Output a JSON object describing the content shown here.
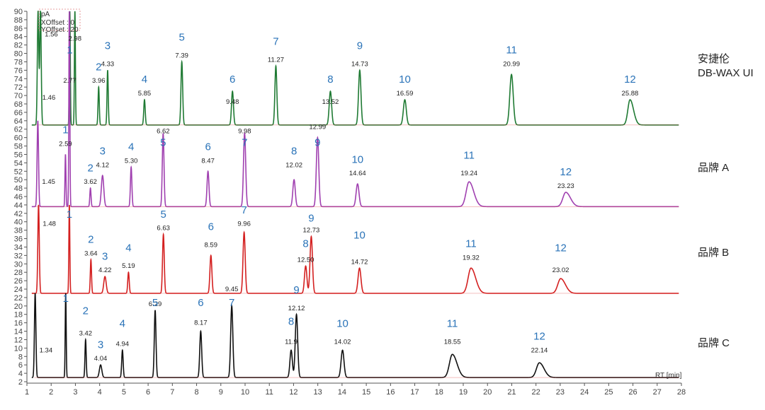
{
  "chart_data": {
    "type": "line",
    "y_unit": "pA",
    "x_offset_text": "XOffset : 0",
    "y_offset_text": "YOffset : 20",
    "xlabel": "RT [min]",
    "xlim": [
      1,
      28
    ],
    "ylim": [
      2,
      90
    ],
    "x_ticks": [
      1,
      2,
      3,
      4,
      5,
      6,
      7,
      8,
      9,
      10,
      11,
      12,
      13,
      14,
      15,
      16,
      17,
      18,
      19,
      20,
      21,
      22,
      23,
      24,
      25,
      26,
      27,
      28
    ],
    "y_ticks": [
      2,
      4,
      6,
      8,
      10,
      12,
      14,
      16,
      18,
      20,
      22,
      24,
      26,
      28,
      30,
      32,
      34,
      36,
      38,
      40,
      42,
      44,
      46,
      48,
      50,
      52,
      54,
      56,
      58,
      60,
      62,
      64,
      66,
      68,
      70,
      72,
      74,
      76,
      78,
      80,
      82,
      84,
      86,
      88,
      90
    ],
    "series": [
      {
        "name": "安捷伦 DB-WAX UI",
        "label_line1": "安捷伦",
        "label_line2": "DB-WAX UI",
        "color": "#1f7a33",
        "baseline": 63,
        "solvent": [
          {
            "rt": 1.46,
            "label": "1.46",
            "label_y": 69
          },
          {
            "rt": 1.56,
            "label": "1.56",
            "label_y": 84
          }
        ],
        "solvent_apex": 90,
        "peaks": [
          {
            "rt": 2.77,
            "num": "1",
            "apex": 90,
            "width": 0.02,
            "label": "2.77",
            "label_y": 73,
            "num_y": 80
          },
          {
            "rt": 2.98,
            "num": "",
            "apex": 90,
            "width": 0.02,
            "label": "2.98",
            "label_y": 83,
            "num_y": 0
          },
          {
            "rt": 3.96,
            "num": "2",
            "apex": 72,
            "width": 0.025,
            "label": "3.96",
            "label_y": 73,
            "num_y": 76
          },
          {
            "rt": 4.33,
            "num": "3",
            "apex": 76,
            "width": 0.025,
            "label": "4.33",
            "label_y": 77,
            "num_y": 81
          },
          {
            "rt": 5.85,
            "num": "4",
            "apex": 69,
            "width": 0.03,
            "label": "5.85",
            "label_y": 70,
            "num_y": 73
          },
          {
            "rt": 7.39,
            "num": "5",
            "apex": 78,
            "width": 0.035,
            "label": "7.39",
            "label_y": 79,
            "num_y": 83
          },
          {
            "rt": 9.48,
            "num": "6",
            "apex": 71,
            "width": 0.04,
            "label": "9.48",
            "label_y": 68,
            "num_y": 73
          },
          {
            "rt": 11.27,
            "num": "7",
            "apex": 77,
            "width": 0.04,
            "label": "11.27",
            "label_y": 78,
            "num_y": 82
          },
          {
            "rt": 13.52,
            "num": "8",
            "apex": 71,
            "width": 0.05,
            "label": "13.52",
            "label_y": 68,
            "num_y": 73
          },
          {
            "rt": 14.73,
            "num": "9",
            "apex": 76,
            "width": 0.05,
            "label": "14.73",
            "label_y": 77,
            "num_y": 81
          },
          {
            "rt": 16.59,
            "num": "10",
            "apex": 69,
            "width": 0.06,
            "label": "16.59",
            "label_y": 70,
            "num_y": 73
          },
          {
            "rt": 20.99,
            "num": "11",
            "apex": 75,
            "width": 0.07,
            "label": "20.99",
            "label_y": 77,
            "num_y": 80
          },
          {
            "rt": 25.88,
            "num": "12",
            "apex": 69,
            "width": 0.09,
            "label": "25.88",
            "label_y": 70,
            "num_y": 73
          }
        ]
      },
      {
        "name": "品牌 A",
        "label_line1": "品牌 A",
        "label_line2": "",
        "color": "#a040b0",
        "baseline": 43.6,
        "solvent": [
          {
            "rt": 1.45,
            "label": "1.45",
            "label_y": 49
          }
        ],
        "solvent_apex": 64,
        "peaks": [
          {
            "rt": 2.59,
            "num": "1",
            "apex": 56,
            "width": 0.02,
            "label": "2.59",
            "label_y": 58,
            "num_y": 61
          },
          {
            "rt": 2.75,
            "num": "",
            "apex": 90,
            "width": 0.02,
            "label": "",
            "label_y": 0,
            "num_y": 0
          },
          {
            "rt": 3.62,
            "num": "2",
            "apex": 48,
            "width": 0.025,
            "label": "3.62",
            "label_y": 49,
            "num_y": 52
          },
          {
            "rt": 4.12,
            "num": "3",
            "apex": 51,
            "width": 0.05,
            "label": "4.12",
            "label_y": 53,
            "num_y": 56
          },
          {
            "rt": 5.3,
            "num": "4",
            "apex": 53,
            "width": 0.03,
            "label": "5.30",
            "label_y": 54,
            "num_y": 57
          },
          {
            "rt": 6.62,
            "num": "5",
            "apex": 61,
            "width": 0.035,
            "label": "6.62",
            "label_y": 61,
            "num_y": 58
          },
          {
            "rt": 8.47,
            "num": "6",
            "apex": 52,
            "width": 0.04,
            "label": "8.47",
            "label_y": 54,
            "num_y": 57
          },
          {
            "rt": 9.98,
            "num": "7",
            "apex": 61,
            "width": 0.045,
            "label": "9.98",
            "label_y": 61,
            "num_y": 58
          },
          {
            "rt": 12.02,
            "num": "8",
            "apex": 50,
            "width": 0.05,
            "label": "12.02",
            "label_y": 53,
            "num_y": 56
          },
          {
            "rt": 12.99,
            "num": "9",
            "apex": 60,
            "width": 0.05,
            "label": "12.99",
            "label_y": 62,
            "num_y": 58
          },
          {
            "rt": 14.64,
            "num": "10",
            "apex": 49,
            "width": 0.06,
            "label": "14.64",
            "label_y": 51,
            "num_y": 54
          },
          {
            "rt": 19.24,
            "num": "11",
            "apex": 49.5,
            "width": 0.12,
            "label": "19.24",
            "label_y": 51,
            "num_y": 55
          },
          {
            "rt": 23.23,
            "num": "12",
            "apex": 47,
            "width": 0.12,
            "label": "23.23",
            "label_y": 48,
            "num_y": 51
          }
        ]
      },
      {
        "name": "品牌 B",
        "label_line1": "品牌 B",
        "label_line2": "",
        "color": "#d42020",
        "baseline": 23,
        "solvent": [
          {
            "rt": 1.48,
            "label": "1.48",
            "label_y": 39
          }
        ],
        "solvent_apex": 44,
        "peaks": [
          {
            "rt": 2.75,
            "num": "1",
            "apex": 44,
            "width": 0.02,
            "label": "",
            "label_y": 0,
            "num_y": 41
          },
          {
            "rt": 3.64,
            "num": "2",
            "apex": 31,
            "width": 0.025,
            "label": "3.64",
            "label_y": 32,
            "num_y": 35
          },
          {
            "rt": 4.22,
            "num": "3",
            "apex": 27,
            "width": 0.05,
            "label": "4.22",
            "label_y": 28,
            "num_y": 31
          },
          {
            "rt": 5.19,
            "num": "4",
            "apex": 28,
            "width": 0.03,
            "label": "5.19",
            "label_y": 29,
            "num_y": 33
          },
          {
            "rt": 6.63,
            "num": "5",
            "apex": 37,
            "width": 0.035,
            "label": "6.63",
            "label_y": 38,
            "num_y": 41
          },
          {
            "rt": 8.59,
            "num": "6",
            "apex": 32,
            "width": 0.04,
            "label": "8.59",
            "label_y": 34,
            "num_y": 38
          },
          {
            "rt": 9.96,
            "num": "7",
            "apex": 37.5,
            "width": 0.045,
            "label": "9.96",
            "label_y": 39,
            "num_y": 42
          },
          {
            "rt": 12.5,
            "num": "8",
            "apex": 29.5,
            "width": 0.05,
            "label": "12.50",
            "label_y": 30.5,
            "num_y": 34
          },
          {
            "rt": 12.73,
            "num": "9",
            "apex": 36.5,
            "width": 0.05,
            "label": "12.73",
            "label_y": 37.5,
            "num_y": 40
          },
          {
            "rt": 14.72,
            "num": "10",
            "apex": 29,
            "width": 0.06,
            "label": "14.72",
            "label_y": 30,
            "num_y": 36
          },
          {
            "rt": 19.32,
            "num": "11",
            "apex": 29,
            "width": 0.12,
            "label": "19.32",
            "label_y": 31,
            "num_y": 34
          },
          {
            "rt": 23.02,
            "num": "12",
            "apex": 26.5,
            "width": 0.12,
            "label": "23.02",
            "label_y": 28,
            "num_y": 33
          }
        ]
      },
      {
        "name": "品牌 C",
        "label_line1": "品牌 C",
        "label_line2": "",
        "color": "#111111",
        "baseline": 3,
        "solvent": [
          {
            "rt": 1.34,
            "label": "1.34",
            "label_y": 9
          }
        ],
        "solvent_apex": 23,
        "peaks": [
          {
            "rt": 2.6,
            "num": "1",
            "apex": 23,
            "width": 0.02,
            "label": "",
            "label_y": 0,
            "num_y": 21
          },
          {
            "rt": 3.42,
            "num": "2",
            "apex": 12,
            "width": 0.025,
            "label": "3.42",
            "label_y": 13,
            "num_y": 18
          },
          {
            "rt": 4.04,
            "num": "3",
            "apex": 6,
            "width": 0.05,
            "label": "4.04",
            "label_y": 7,
            "num_y": 10
          },
          {
            "rt": 4.94,
            "num": "4",
            "apex": 9.5,
            "width": 0.03,
            "label": "4.94",
            "label_y": 10.5,
            "num_y": 15
          },
          {
            "rt": 6.29,
            "num": "5",
            "apex": 19,
            "width": 0.035,
            "label": "6.29",
            "label_y": 20,
            "num_y": 20
          },
          {
            "rt": 8.17,
            "num": "6",
            "apex": 14,
            "width": 0.04,
            "label": "8.17",
            "label_y": 15.5,
            "num_y": 20
          },
          {
            "rt": 9.45,
            "num": "7",
            "apex": 20,
            "width": 0.045,
            "label": "9.45",
            "label_y": 23.5,
            "num_y": 20
          },
          {
            "rt": 11.9,
            "num": "8",
            "apex": 9.5,
            "width": 0.05,
            "label": "11.9",
            "label_y": 11,
            "num_y": 15.5
          },
          {
            "rt": 12.12,
            "num": "9",
            "apex": 18,
            "width": 0.05,
            "label": "12.12",
            "label_y": 19,
            "num_y": 23
          },
          {
            "rt": 14.02,
            "num": "10",
            "apex": 9.5,
            "width": 0.06,
            "label": "14.02",
            "label_y": 11,
            "num_y": 15
          },
          {
            "rt": 18.55,
            "num": "11",
            "apex": 8.5,
            "width": 0.12,
            "label": "18.55",
            "label_y": 11,
            "num_y": 15
          },
          {
            "rt": 22.14,
            "num": "12",
            "apex": 6.5,
            "width": 0.12,
            "label": "22.14",
            "label_y": 9,
            "num_y": 12
          }
        ]
      }
    ]
  }
}
